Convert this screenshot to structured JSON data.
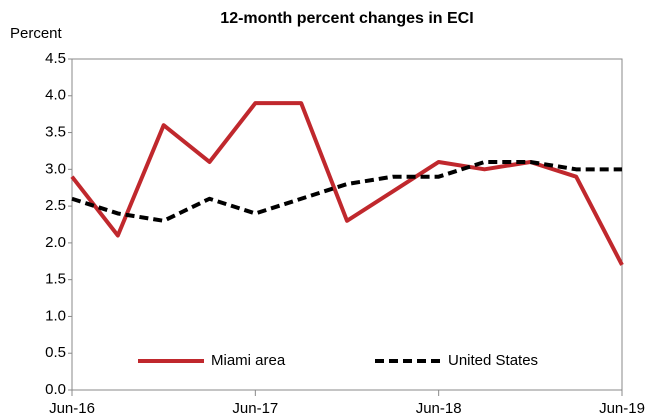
{
  "chart_data": {
    "type": "line",
    "title": "12-month percent changes in ECI",
    "y_label": "Percent",
    "categories": [
      "Jun-16",
      null,
      null,
      null,
      "Jun-17",
      null,
      null,
      null,
      "Jun-18",
      null,
      null,
      null,
      "Jun-19"
    ],
    "series": [
      {
        "name": "Miami area",
        "color": "#c0282d",
        "dash": "solid",
        "values": [
          2.9,
          2.1,
          3.6,
          3.1,
          3.9,
          3.9,
          2.3,
          2.7,
          3.1,
          3.0,
          3.1,
          2.9,
          1.7
        ]
      },
      {
        "name": "United States",
        "color": "#000000",
        "dash": "dashed",
        "values": [
          2.6,
          2.4,
          2.3,
          2.6,
          2.4,
          2.6,
          2.8,
          2.9,
          2.9,
          3.1,
          3.1,
          3.0,
          3.0
        ]
      }
    ],
    "ylim": [
      0,
      4.5
    ],
    "yticks": [
      {
        "value": 0,
        "label": "0.0"
      },
      0.5,
      {
        "value": 1,
        "label": "1.0"
      },
      1.5,
      {
        "value": 2,
        "label": "2.0"
      },
      2.5,
      {
        "value": 3,
        "label": "3.0"
      },
      3.5,
      {
        "value": 4,
        "label": "4.0"
      },
      4.5
    ],
    "grid": false,
    "legend": "lower center"
  }
}
